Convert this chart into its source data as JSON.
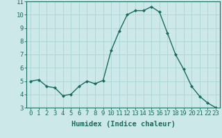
{
  "x": [
    0,
    1,
    2,
    3,
    4,
    5,
    6,
    7,
    8,
    9,
    10,
    11,
    12,
    13,
    14,
    15,
    16,
    17,
    18,
    19,
    20,
    21,
    22,
    23
  ],
  "y": [
    5.0,
    5.1,
    4.6,
    4.5,
    3.9,
    4.0,
    4.6,
    5.0,
    4.8,
    5.05,
    7.3,
    8.75,
    10.0,
    10.3,
    10.3,
    10.6,
    10.2,
    8.6,
    7.0,
    5.9,
    4.6,
    3.85,
    3.35,
    3.0
  ],
  "line_color": "#1a6b5e",
  "marker": "D",
  "marker_size": 2.0,
  "bg_color": "#cce8e8",
  "grid_color": "#aad4d4",
  "xlabel": "Humidex (Indice chaleur)",
  "ylim": [
    3,
    11
  ],
  "xlim": [
    -0.5,
    23.5
  ],
  "yticks": [
    3,
    4,
    5,
    6,
    7,
    8,
    9,
    10,
    11
  ],
  "xticks": [
    0,
    1,
    2,
    3,
    4,
    5,
    6,
    7,
    8,
    9,
    10,
    11,
    12,
    13,
    14,
    15,
    16,
    17,
    18,
    19,
    20,
    21,
    22,
    23
  ],
  "tick_color": "#1a6b5e",
  "xlabel_fontsize": 7.5,
  "tick_fontsize": 6.5,
  "linewidth": 1.0
}
